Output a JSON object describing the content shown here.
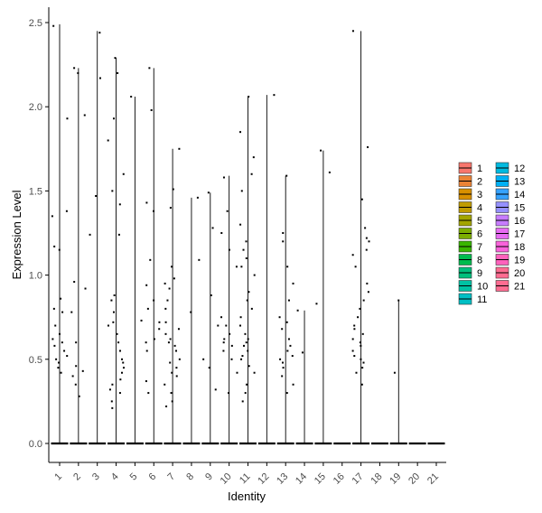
{
  "chart_data": {
    "type": "violin",
    "xlabel": "Identity",
    "ylabel": "Expression Level",
    "categories": [
      "1",
      "2",
      "3",
      "4",
      "5",
      "6",
      "7",
      "8",
      "9",
      "10",
      "11",
      "12",
      "13",
      "14",
      "15",
      "16",
      "17",
      "18",
      "19",
      "20",
      "21"
    ],
    "ylim": [
      0,
      2.55
    ],
    "yticks": [
      "0.0",
      "0.5",
      "1.0",
      "1.5",
      "2.0",
      "2.5"
    ],
    "max_values": [
      2.49,
      2.23,
      2.45,
      2.29,
      2.06,
      2.23,
      1.75,
      1.46,
      1.49,
      1.59,
      2.06,
      2.07,
      1.59,
      0.79,
      1.74,
      0,
      2.45,
      0,
      0.85,
      0,
      0
    ],
    "nonzero_cells": [
      [
        0.42,
        0.45,
        0.5,
        0.55,
        0.6,
        0.62,
        0.65,
        0.7,
        0.78,
        0.8,
        0.86,
        1.15,
        1.17,
        1.35,
        1.38,
        1.93,
        2.48,
        0.48,
        0.52,
        0.58
      ],
      [
        0.28,
        0.35,
        0.4,
        0.43,
        0.46,
        0.6,
        0.78,
        0.92,
        0.96,
        1.95,
        2.2,
        2.23
      ],
      [
        1.24,
        1.47,
        2.17,
        2.44
      ],
      [
        0.21,
        0.25,
        0.3,
        0.32,
        0.35,
        0.38,
        0.42,
        0.45,
        0.48,
        0.5,
        0.55,
        0.6,
        0.65,
        0.7,
        0.72,
        0.78,
        0.85,
        0.88,
        1.24,
        1.42,
        1.5,
        1.6,
        1.8,
        1.93,
        2.2,
        2.29
      ],
      [
        0.73,
        2.06
      ],
      [
        0.3,
        0.37,
        0.55,
        0.6,
        0.62,
        0.68,
        0.72,
        0.8,
        0.85,
        0.94,
        1.09,
        1.38,
        1.43,
        1.98,
        2.23
      ],
      [
        0.22,
        0.25,
        0.3,
        0.35,
        0.4,
        0.42,
        0.45,
        0.48,
        0.5,
        0.55,
        0.58,
        0.6,
        0.62,
        0.65,
        0.68,
        0.72,
        0.8,
        0.85,
        0.92,
        0.95,
        0.98,
        1.05,
        1.4,
        1.51,
        1.75
      ],
      [
        0.78,
        1.09,
        1.46
      ],
      [
        0.32,
        0.45,
        0.5,
        0.7,
        0.88,
        1.28,
        1.49
      ],
      [
        0.3,
        0.42,
        0.5,
        0.55,
        0.58,
        0.6,
        0.62,
        0.65,
        0.7,
        0.75,
        1.05,
        1.15,
        1.25,
        1.38,
        1.58
      ],
      [
        0.25,
        0.3,
        0.35,
        0.42,
        0.46,
        0.5,
        0.52,
        0.55,
        0.58,
        0.6,
        0.62,
        0.65,
        0.7,
        0.75,
        0.8,
        0.85,
        0.9,
        1.0,
        1.05,
        1.1,
        1.15,
        1.2,
        1.3,
        1.5,
        1.6,
        1.7,
        1.85,
        2.06
      ],
      [
        2.07
      ],
      [
        0.3,
        0.35,
        0.4,
        0.45,
        0.48,
        0.5,
        0.52,
        0.55,
        0.58,
        0.62,
        0.68,
        0.72,
        0.75,
        0.85,
        0.95,
        1.05,
        1.2,
        1.25,
        1.59
      ],
      [
        0.54,
        0.79
      ],
      [
        0.83,
        1.61,
        1.74
      ],
      [],
      [
        0.35,
        0.42,
        0.45,
        0.48,
        0.5,
        0.52,
        0.55,
        0.58,
        0.6,
        0.62,
        0.65,
        0.68,
        0.7,
        0.75,
        0.8,
        0.85,
        0.9,
        0.95,
        1.05,
        1.12,
        1.15,
        1.2,
        1.22,
        1.28,
        1.45,
        1.76,
        2.45
      ],
      [],
      [
        0.42,
        0.85
      ],
      [],
      []
    ],
    "legend": {
      "placement": "right",
      "entries": [
        "1",
        "2",
        "3",
        "4",
        "5",
        "6",
        "7",
        "8",
        "9",
        "10",
        "11",
        "12",
        "13",
        "14",
        "15",
        "16",
        "17",
        "18",
        "19",
        "20",
        "21"
      ],
      "colors": [
        "#F8766D",
        "#EB8335",
        "#D89000",
        "#C09B00",
        "#A3A500",
        "#7CAE00",
        "#39B600",
        "#00BB4E",
        "#00BF7D",
        "#00C1A3",
        "#00BFC4",
        "#00BAE0",
        "#00B0F6",
        "#35A2FF",
        "#9590FF",
        "#C77CFF",
        "#E76BF3",
        "#FA62DB",
        "#FF62BC",
        "#FF6C91",
        "#FF6C91"
      ]
    },
    "grid": false
  }
}
